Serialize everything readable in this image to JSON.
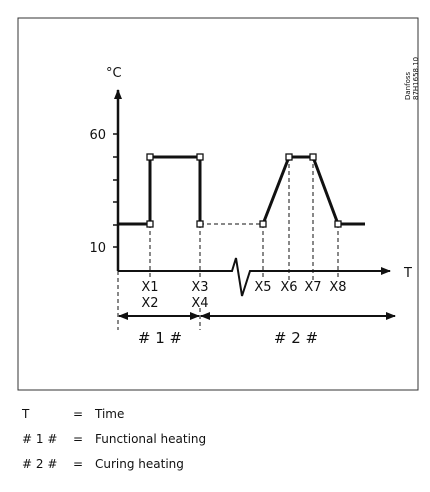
{
  "figure": {
    "y_unit": "°C",
    "y_labels": [
      "60",
      "10"
    ],
    "x_axis_label": "T",
    "x_labels": [
      "X1",
      "X2",
      "X3",
      "X4",
      "X5",
      "X6",
      "X7",
      "X8"
    ],
    "phases": [
      "# 1 #",
      "# 2 #"
    ],
    "code": [
      "Danfoss",
      "87H1658.10"
    ]
  },
  "legend": [
    {
      "key": "T",
      "sep": "=",
      "text": "Time"
    },
    {
      "key": "# 1 #",
      "sep": "=",
      "text": "Functional heating"
    },
    {
      "key": "# 2 #",
      "sep": "=",
      "text": "Curing heating"
    }
  ]
}
